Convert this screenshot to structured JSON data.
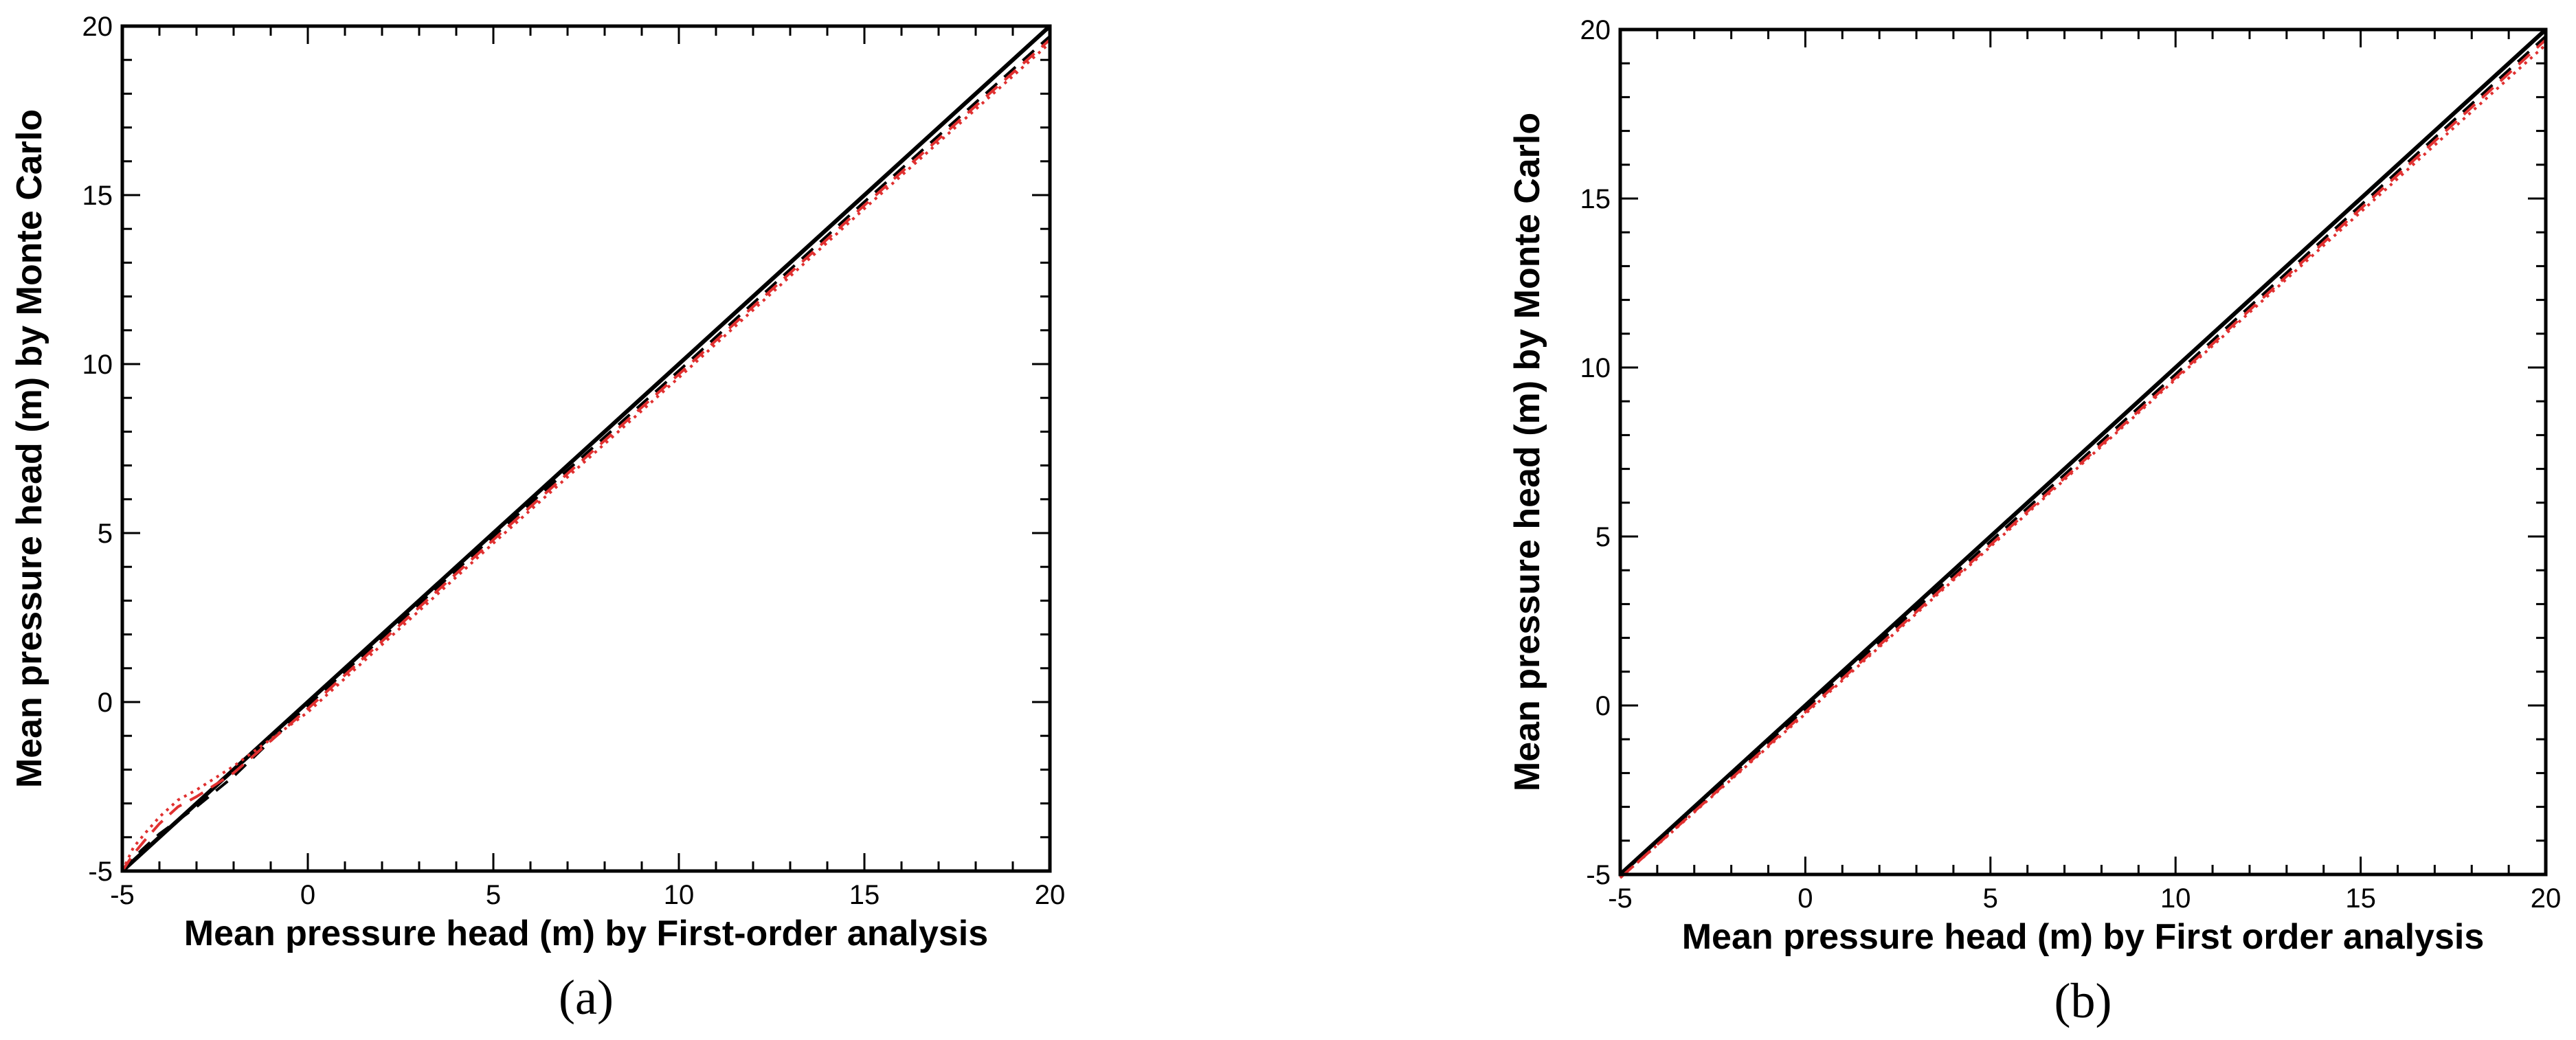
{
  "chart_data": [
    {
      "type": "line",
      "panel_label": "(a)",
      "xlabel": "Mean pressure head (m) by First-order analysis",
      "ylabel": "Mean pressure head (m) by Monte Carlo",
      "xlim": [
        -5,
        20
      ],
      "ylim": [
        -5,
        20
      ],
      "xticks": [
        "-5",
        "0",
        "5",
        "10",
        "15",
        "20"
      ],
      "yticks": [
        "-5",
        "0",
        "5",
        "10",
        "15",
        "20"
      ],
      "grid": false,
      "series": [
        {
          "color": "#000000",
          "style": "solid",
          "x": [
            -5,
            20
          ],
          "y": [
            -5,
            20
          ]
        },
        {
          "color": "#000000",
          "style": "dashed",
          "x": [
            -5,
            -4.5,
            -4,
            -3,
            -2,
            0,
            5,
            10,
            15,
            20
          ],
          "y": [
            -5,
            -4.4,
            -3.9,
            -3.1,
            -2.2,
            -0.1,
            4.9,
            9.8,
            14.8,
            19.7
          ]
        },
        {
          "color": "#e03030",
          "style": "dashed",
          "x": [
            -5,
            -4.7,
            -4.4,
            -4,
            -3.5,
            -3,
            -2,
            0,
            5,
            10,
            15,
            20
          ],
          "y": [
            -5,
            -4.5,
            -4.1,
            -3.6,
            -3.1,
            -2.8,
            -2.1,
            -0.2,
            4.8,
            9.7,
            14.7,
            19.6
          ]
        },
        {
          "color": "#e03030",
          "style": "dotted",
          "x": [
            -5,
            -4.7,
            -4.4,
            -4,
            -3.5,
            -3,
            -2,
            0,
            5,
            10,
            15,
            20
          ],
          "y": [
            -5,
            -4.3,
            -3.9,
            -3.4,
            -2.9,
            -2.6,
            -1.9,
            -0.3,
            4.7,
            9.6,
            14.6,
            19.5
          ]
        }
      ]
    },
    {
      "type": "line",
      "panel_label": "(b)",
      "xlabel": "Mean pressure head (m) by First order analysis",
      "ylabel": "Mean pressure head (m) by Monte Carlo",
      "xlim": [
        -5,
        20
      ],
      "ylim": [
        -5,
        20
      ],
      "xticks": [
        "-5",
        "0",
        "5",
        "10",
        "15",
        "20"
      ],
      "yticks": [
        "-5",
        "0",
        "5",
        "10",
        "15",
        "20"
      ],
      "grid": false,
      "series": [
        {
          "color": "#000000",
          "style": "solid",
          "x": [
            -5,
            20
          ],
          "y": [
            -5,
            20
          ]
        },
        {
          "color": "#000000",
          "style": "dashed",
          "x": [
            -5,
            0,
            5,
            10,
            15,
            20
          ],
          "y": [
            -5.05,
            -0.1,
            4.85,
            9.8,
            14.8,
            19.8
          ]
        },
        {
          "color": "#e03030",
          "style": "dashed",
          "x": [
            -5,
            0,
            5,
            10,
            15,
            20
          ],
          "y": [
            -5.1,
            -0.2,
            4.75,
            9.7,
            14.7,
            19.7
          ]
        },
        {
          "color": "#e03030",
          "style": "dotted",
          "x": [
            -5,
            0,
            5,
            10,
            15,
            20
          ],
          "y": [
            -5.1,
            -0.25,
            4.7,
            9.65,
            14.6,
            19.55
          ]
        }
      ]
    }
  ]
}
